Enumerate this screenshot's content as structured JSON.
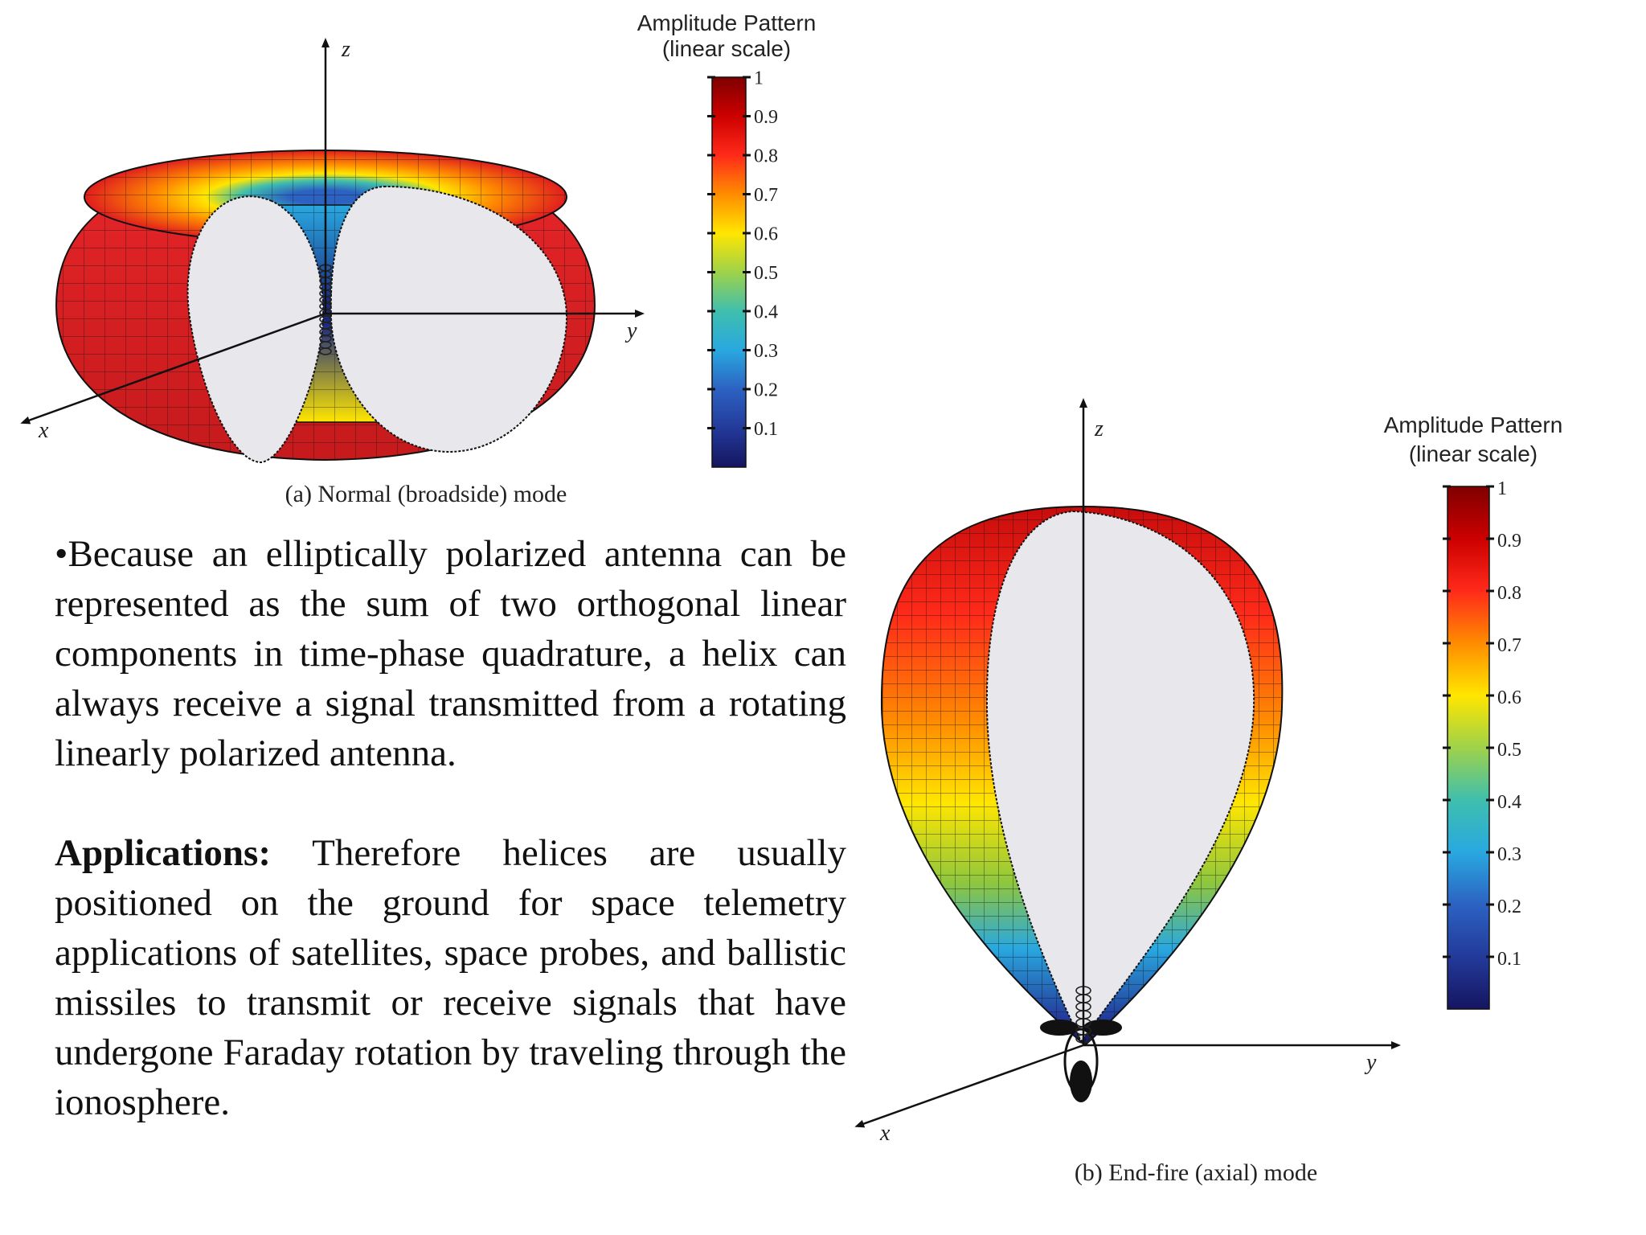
{
  "figure_a": {
    "axes": {
      "x": "x",
      "y": "y",
      "z": "z"
    },
    "colorbar": {
      "title_line1": "Amplitude Pattern",
      "title_line2": "(linear scale)",
      "ticks": [
        "1",
        "0.9",
        "0.8",
        "0.7",
        "0.6",
        "0.5",
        "0.4",
        "0.3",
        "0.2",
        "0.1"
      ]
    },
    "caption": "(a) Normal (broadside) mode"
  },
  "figure_b": {
    "axes": {
      "x": "x",
      "y": "y",
      "z": "z"
    },
    "colorbar": {
      "title_line1": "Amplitude Pattern",
      "title_line2": "(linear scale)",
      "ticks": [
        "1",
        "0.9",
        "0.8",
        "0.7",
        "0.6",
        "0.5",
        "0.4",
        "0.3",
        "0.2",
        "0.1"
      ]
    },
    "caption": "(b) End-fire (axial) mode"
  },
  "text": {
    "para1": "•Because an elliptically polarized antenna can be represented as the sum of two orthogonal linear components in time-phase quadrature, a helix can always receive a signal transmitted from a rotating linearly polarized antenna.",
    "para2_heading": "Applications:",
    "para2_body": " Therefore helices are usually positioned on the ground for space telemetry applications of satellites, space probes, and ballistic missiles to transmit or receive signals that have undergone Faraday rotation by traveling through the ionosphere."
  },
  "colors": {
    "jet_top": "#7f0000",
    "jet_red": "#e8262a",
    "jet_orange": "#f7941d",
    "jet_yellow": "#fff200",
    "jet_green": "#8dc63f",
    "jet_cyan": "#29abe2",
    "jet_blue": "#2e3192",
    "jet_bottom": "#1b1464",
    "cut_face": "#e8e8ec"
  }
}
